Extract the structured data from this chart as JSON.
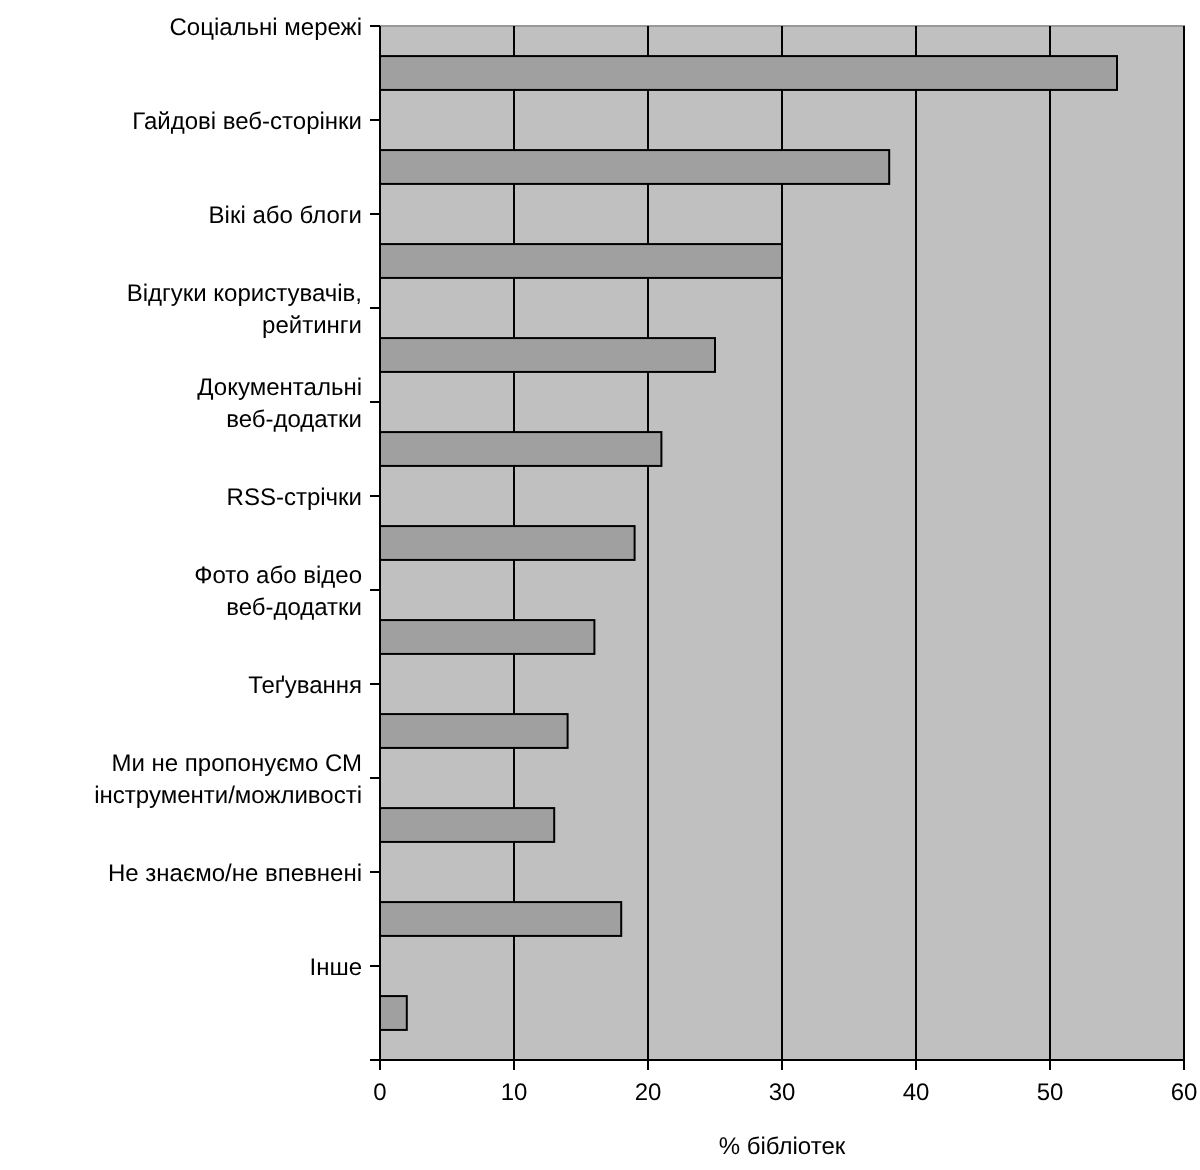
{
  "chart_data": {
    "type": "bar",
    "orientation": "horizontal",
    "categories": [
      "Соціальні мережі",
      "Гайдові веб-сторінки",
      "Вікі або блоги",
      "Відгуки користувачів, рейтинги",
      "Документальні веб-додатки",
      "RSS-стрічки",
      "Фото або відео веб-додатки",
      "Теґування",
      "Ми не пропонуємо СМ інструменти/можливості",
      "Не знаємо/не впевнені",
      "Інше"
    ],
    "values": [
      55,
      38,
      30,
      25,
      21,
      19,
      16,
      14,
      13,
      18,
      2
    ],
    "color": "#a0a0a0",
    "xlabel": "% бібліотек",
    "xlim": [
      0,
      60
    ],
    "xticks": [
      0,
      10,
      20,
      30,
      40,
      50,
      60
    ],
    "grid": "x"
  }
}
